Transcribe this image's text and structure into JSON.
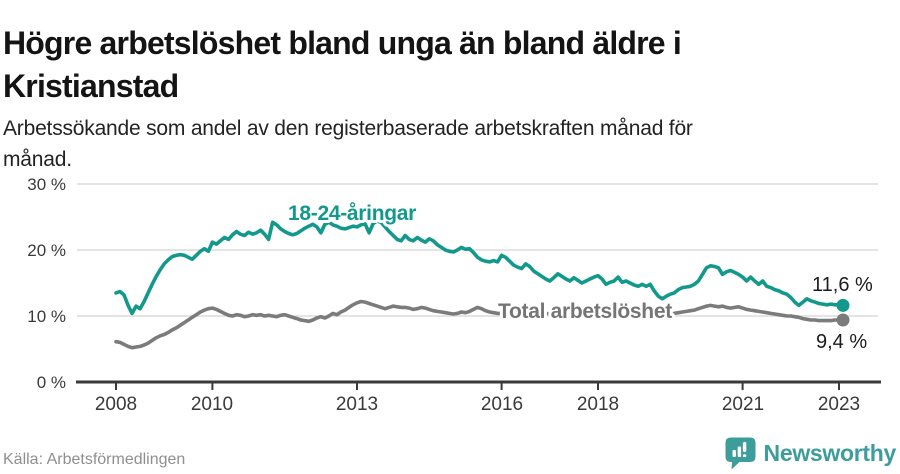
{
  "header": {
    "title_lines": [
      "Högre arbetslöshet bland unga än bland äldre i",
      "Kristianstad"
    ],
    "subtitle_lines": [
      "Arbetssökande som andel av den registerbaserade arbetskraften månad för",
      "månad."
    ]
  },
  "footer": {
    "source": "Källa: Arbetsförmedlingen",
    "logo_text": "Newsworthy",
    "logo_color": "#3d9d9b",
    "logo_icon": "bar-chart-speech-bubble"
  },
  "chart_data": {
    "type": "line",
    "title": "Högre arbetslöshet bland unga än bland äldre i Kristianstad",
    "subtitle": "Arbetssökande som andel av den registerbaserade arbetskraften månad för månad.",
    "source": "Källa: Arbetsförmedlingen",
    "unit": "%",
    "frequency": "monthly",
    "start": "2008-01",
    "end": "2023-02",
    "grid": "horizontal",
    "legend_position": "inline-labels",
    "ylim": [
      0,
      32
    ],
    "xlim_years": [
      2007.2,
      2023.85
    ],
    "y_tick_values": [
      0,
      10,
      20,
      30
    ],
    "y_tick_labels": [
      "0 %",
      "10 %",
      "20 %",
      "30 %"
    ],
    "x_tick_years": [
      2008,
      2010,
      2013,
      2016,
      2018,
      2021,
      2023
    ],
    "x_tick_labels": [
      "2008",
      "2010",
      "2013",
      "2016",
      "2018",
      "2021",
      "2023"
    ],
    "series": [
      {
        "name": "18-24-åringar",
        "color": "#13998c",
        "end_value": 11.6,
        "end_label": "11,6 %",
        "values": [
          13.5,
          13.7,
          13.2,
          11.6,
          10.4,
          11.5,
          11.1,
          12.2,
          13.5,
          14.8,
          16.0,
          17.0,
          17.9,
          18.5,
          19.0,
          19.2,
          19.3,
          19.2,
          18.9,
          18.6,
          19.2,
          19.8,
          20.2,
          19.8,
          21.2,
          20.9,
          21.4,
          21.9,
          21.6,
          22.3,
          22.8,
          22.4,
          22.2,
          22.7,
          22.4,
          22.6,
          23.0,
          22.4,
          21.6,
          24.2,
          23.8,
          23.2,
          22.8,
          22.5,
          22.3,
          22.5,
          22.9,
          23.3,
          23.6,
          23.9,
          23.5,
          22.6,
          23.9,
          24.2,
          23.8,
          23.6,
          23.3,
          23.2,
          23.4,
          23.6,
          23.5,
          23.8,
          24.0,
          22.6,
          24.0,
          24.4,
          24.2,
          23.5,
          22.8,
          22.2,
          21.6,
          21.4,
          22.2,
          21.6,
          21.4,
          21.9,
          21.5,
          21.2,
          21.7,
          21.4,
          20.8,
          20.4,
          20.0,
          19.8,
          19.7,
          20.0,
          20.4,
          20.1,
          20.2,
          19.6,
          18.9,
          18.5,
          18.3,
          18.2,
          18.4,
          18.2,
          19.2,
          18.9,
          18.3,
          17.7,
          17.4,
          17.2,
          17.9,
          17.5,
          16.8,
          16.4,
          16.0,
          15.6,
          15.3,
          15.8,
          16.4,
          16.0,
          15.6,
          15.3,
          15.8,
          15.4,
          15.0,
          15.3,
          15.6,
          15.9,
          16.1,
          15.6,
          14.8,
          15.1,
          15.3,
          15.9,
          15.1,
          15.3,
          15.0,
          14.7,
          14.5,
          14.8,
          14.5,
          14.8,
          13.8,
          13.0,
          12.6,
          13.0,
          13.3,
          13.5,
          14.0,
          14.3,
          14.4,
          14.5,
          14.8,
          15.3,
          16.3,
          17.3,
          17.6,
          17.5,
          17.3,
          16.3,
          16.7,
          16.9,
          16.6,
          16.3,
          15.9,
          15.3,
          15.9,
          15.3,
          14.8,
          15.3,
          14.5,
          14.3,
          14.0,
          13.8,
          13.5,
          13.3,
          12.8,
          12.1,
          11.6,
          12.1,
          12.6,
          12.3,
          12.1,
          11.9,
          11.8,
          11.7,
          11.8,
          11.7,
          11.7,
          11.6
        ]
      },
      {
        "name": "Total arbetslöshet",
        "color": "#7b7b7b",
        "end_value": 9.4,
        "end_label": "9,4 %",
        "values": [
          6.1,
          6.0,
          5.7,
          5.4,
          5.2,
          5.3,
          5.4,
          5.6,
          5.9,
          6.3,
          6.7,
          7.0,
          7.2,
          7.5,
          7.9,
          8.2,
          8.6,
          9.0,
          9.4,
          9.8,
          10.2,
          10.6,
          10.9,
          11.1,
          11.2,
          11.0,
          10.7,
          10.4,
          10.1,
          10.0,
          10.2,
          10.1,
          9.9,
          10.0,
          10.2,
          10.1,
          10.2,
          10.0,
          10.1,
          10.0,
          9.9,
          10.1,
          10.2,
          10.0,
          9.8,
          9.6,
          9.4,
          9.3,
          9.2,
          9.4,
          9.7,
          9.9,
          9.7,
          10.0,
          10.4,
          10.2,
          10.6,
          10.9,
          11.3,
          11.7,
          12.0,
          12.2,
          12.1,
          11.9,
          11.7,
          11.5,
          11.3,
          11.1,
          11.3,
          11.5,
          11.4,
          11.3,
          11.3,
          11.2,
          11.0,
          11.1,
          11.3,
          11.2,
          11.0,
          10.8,
          10.7,
          10.6,
          10.5,
          10.4,
          10.3,
          10.4,
          10.6,
          10.5,
          10.7,
          11.0,
          11.3,
          11.1,
          10.8,
          10.6,
          10.5,
          10.4,
          10.4,
          10.2,
          10.3,
          10.2,
          10.1,
          10.2,
          10.3,
          10.2,
          10.1,
          10.2,
          10.3,
          10.4,
          10.3,
          10.4,
          10.5,
          10.4,
          10.3,
          10.4,
          10.5,
          10.4,
          10.3,
          10.2,
          10.3,
          10.4,
          10.3,
          10.2,
          10.1,
          10.2,
          10.3,
          10.2,
          10.1,
          10.0,
          10.1,
          10.2,
          10.3,
          10.4,
          10.3,
          10.2,
          10.3,
          10.4,
          10.5,
          10.4,
          10.3,
          10.4,
          10.5,
          10.6,
          10.7,
          10.8,
          10.9,
          11.1,
          11.3,
          11.5,
          11.6,
          11.5,
          11.4,
          11.5,
          11.3,
          11.2,
          11.3,
          11.4,
          11.2,
          11.0,
          10.9,
          10.8,
          10.7,
          10.6,
          10.5,
          10.4,
          10.3,
          10.2,
          10.1,
          10.0,
          10.0,
          9.9,
          9.8,
          9.6,
          9.5,
          9.4,
          9.4,
          9.3,
          9.3,
          9.3,
          9.3,
          9.4,
          9.4,
          9.4
        ]
      }
    ]
  }
}
